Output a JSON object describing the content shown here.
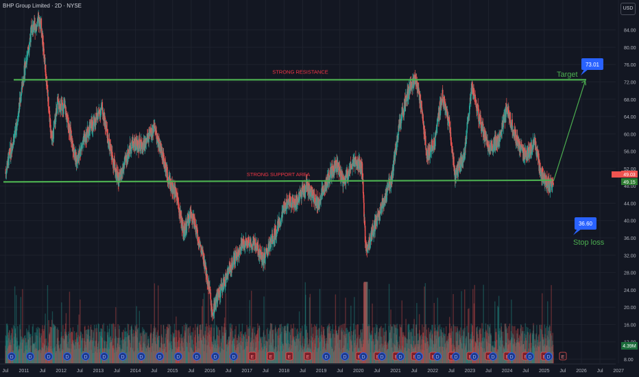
{
  "header": {
    "title": "BHP Group Limited · 2D · NYSE",
    "currency_button": "USD"
  },
  "colors": {
    "background": "#131722",
    "up": "#26a69a",
    "down": "#ef5350",
    "line_green": "#4caf50",
    "resistance_text": "#f23645",
    "label_blue": "#2962ff"
  },
  "chart_data": {
    "type": "candlestick",
    "title": "BHP Group Limited · 2D · NYSE",
    "x_ticks": [
      "Jul",
      "2011",
      "Jul",
      "2012",
      "Jul",
      "2013",
      "Jul",
      "2014",
      "Jul",
      "2015",
      "Jul",
      "2016",
      "Jul",
      "2017",
      "Jul",
      "2018",
      "Jul",
      "2019",
      "Jul",
      "2020",
      "Jul",
      "2021",
      "Jul",
      "2022",
      "Jul",
      "2023",
      "Jul",
      "2024",
      "Jul",
      "2025",
      "Jul",
      "2026",
      "Jul",
      "2027"
    ],
    "y_ticks": [
      "84.00",
      "80.00",
      "76.00",
      "72.00",
      "68.00",
      "64.00",
      "60.00",
      "56.00",
      "52.00",
      "48.00",
      "44.00",
      "40.00",
      "36.00",
      "32.00",
      "28.00",
      "24.00",
      "20.00",
      "16.00",
      "12.00",
      "8.00"
    ],
    "y_range": [
      8,
      84
    ],
    "price_path": [
      {
        "t": 2010.5,
        "v": 51
      },
      {
        "t": 2010.8,
        "v": 62
      },
      {
        "t": 2011.0,
        "v": 74
      },
      {
        "t": 2011.2,
        "v": 84
      },
      {
        "t": 2011.45,
        "v": 86
      },
      {
        "t": 2011.6,
        "v": 73
      },
      {
        "t": 2011.75,
        "v": 58
      },
      {
        "t": 2011.9,
        "v": 67
      },
      {
        "t": 2012.1,
        "v": 66
      },
      {
        "t": 2012.4,
        "v": 54
      },
      {
        "t": 2012.7,
        "v": 60
      },
      {
        "t": 2013.1,
        "v": 66
      },
      {
        "t": 2013.3,
        "v": 57
      },
      {
        "t": 2013.55,
        "v": 49
      },
      {
        "t": 2013.9,
        "v": 58
      },
      {
        "t": 2014.2,
        "v": 57
      },
      {
        "t": 2014.5,
        "v": 61
      },
      {
        "t": 2014.7,
        "v": 56
      },
      {
        "t": 2014.9,
        "v": 49
      },
      {
        "t": 2015.1,
        "v": 46
      },
      {
        "t": 2015.3,
        "v": 37
      },
      {
        "t": 2015.5,
        "v": 42
      },
      {
        "t": 2015.8,
        "v": 32
      },
      {
        "t": 2016.0,
        "v": 24
      },
      {
        "t": 2016.05,
        "v": 19
      },
      {
        "t": 2016.4,
        "v": 26
      },
      {
        "t": 2016.6,
        "v": 30
      },
      {
        "t": 2016.9,
        "v": 35
      },
      {
        "t": 2017.2,
        "v": 35
      },
      {
        "t": 2017.45,
        "v": 31
      },
      {
        "t": 2017.7,
        "v": 36
      },
      {
        "t": 2017.9,
        "v": 40
      },
      {
        "t": 2018.1,
        "v": 45
      },
      {
        "t": 2018.3,
        "v": 44
      },
      {
        "t": 2018.6,
        "v": 48
      },
      {
        "t": 2018.9,
        "v": 44
      },
      {
        "t": 2019.2,
        "v": 50
      },
      {
        "t": 2019.4,
        "v": 53
      },
      {
        "t": 2019.6,
        "v": 49
      },
      {
        "t": 2019.9,
        "v": 54
      },
      {
        "t": 2020.1,
        "v": 52
      },
      {
        "t": 2020.2,
        "v": 33
      },
      {
        "t": 2020.45,
        "v": 39
      },
      {
        "t": 2020.7,
        "v": 45
      },
      {
        "t": 2020.9,
        "v": 50
      },
      {
        "t": 2021.1,
        "v": 62
      },
      {
        "t": 2021.35,
        "v": 70
      },
      {
        "t": 2021.55,
        "v": 73
      },
      {
        "t": 2021.7,
        "v": 66
      },
      {
        "t": 2021.85,
        "v": 55
      },
      {
        "t": 2022.05,
        "v": 58
      },
      {
        "t": 2022.25,
        "v": 69
      },
      {
        "t": 2022.45,
        "v": 62
      },
      {
        "t": 2022.6,
        "v": 50
      },
      {
        "t": 2022.85,
        "v": 55
      },
      {
        "t": 2023.05,
        "v": 71
      },
      {
        "t": 2023.3,
        "v": 62
      },
      {
        "t": 2023.5,
        "v": 57
      },
      {
        "t": 2023.75,
        "v": 58
      },
      {
        "t": 2024.0,
        "v": 66
      },
      {
        "t": 2024.2,
        "v": 60
      },
      {
        "t": 2024.45,
        "v": 55
      },
      {
        "t": 2024.6,
        "v": 56
      },
      {
        "t": 2024.75,
        "v": 58
      },
      {
        "t": 2024.9,
        "v": 51
      },
      {
        "t": 2025.05,
        "v": 49
      },
      {
        "t": 2025.15,
        "v": 48
      },
      {
        "t": 2025.25,
        "v": 49.15
      }
    ],
    "volume_scale_max": 30,
    "lines": {
      "resistance": {
        "value": 72.5,
        "label": "STRONG RESISTANCE"
      },
      "support": {
        "value": 49.15,
        "label": "STRONG SUPPORT AREA"
      }
    },
    "projection": {
      "from": {
        "t": 2025.25,
        "v": 49.15
      },
      "to": {
        "t": 2026.1,
        "v": 72.5
      }
    },
    "target": {
      "value": "73.01",
      "label": "Target"
    },
    "stop": {
      "value": "36.60",
      "label": "Stop loss"
    },
    "price_tags": {
      "current": "49.03",
      "support_tag": "49.15",
      "volume_tag": "4.39M"
    },
    "event_markers": {
      "dividend_letter": "D",
      "earnings_letter": "E"
    }
  }
}
